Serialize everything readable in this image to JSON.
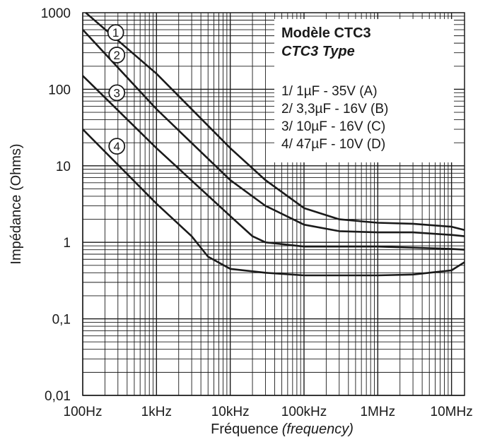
{
  "chart_data": {
    "type": "line",
    "x_scale": "log",
    "y_scale": "log",
    "xlim": [
      100,
      15000000
    ],
    "ylim": [
      0.01,
      1000
    ],
    "grid": true,
    "xlabel_main": "Fréquence",
    "xlabel_italic": "(frequency)",
    "ylabel": "Impédance (Ohms)",
    "x_ticks": [
      {
        "value": 100,
        "label": "100Hz"
      },
      {
        "value": 1000,
        "label": "1kHz"
      },
      {
        "value": 10000,
        "label": "10kHz"
      },
      {
        "value": 100000,
        "label": "100kHz"
      },
      {
        "value": 1000000,
        "label": "1MHz"
      },
      {
        "value": 10000000,
        "label": "10MHz"
      }
    ],
    "y_ticks": [
      {
        "value": 0.01,
        "label": "0,01"
      },
      {
        "value": 0.1,
        "label": "0,1"
      },
      {
        "value": 1,
        "label": "1"
      },
      {
        "value": 10,
        "label": "10"
      },
      {
        "value": 100,
        "label": "100"
      },
      {
        "value": 1000,
        "label": "1000"
      }
    ],
    "legend": {
      "title": "Modèle CTC3",
      "subtitle": "CTC3 Type",
      "placement": "top-right",
      "items": [
        "1/ 1µF - 35V (A)",
        "2/ 3,3µF - 16V (B)",
        "3/ 10µF - 16V (C)",
        "4/ 47µF - 10V (D)"
      ]
    },
    "series": [
      {
        "marker": "1",
        "marker_at": {
          "x": 280,
          "y": 550
        },
        "points": [
          [
            110,
            1000
          ],
          [
            1000,
            160
          ],
          [
            10000,
            17
          ],
          [
            30000,
            6.5
          ],
          [
            100000,
            2.8
          ],
          [
            300000,
            2.0
          ],
          [
            1000000,
            1.8
          ],
          [
            3000000,
            1.75
          ],
          [
            10000000,
            1.6
          ],
          [
            15000000,
            1.45
          ]
        ]
      },
      {
        "marker": "2",
        "marker_at": {
          "x": 290,
          "y": 280
        },
        "points": [
          [
            100,
            600
          ],
          [
            1000,
            55
          ],
          [
            10000,
            6.5
          ],
          [
            30000,
            3.0
          ],
          [
            100000,
            1.7
          ],
          [
            300000,
            1.4
          ],
          [
            1000000,
            1.35
          ],
          [
            3000000,
            1.35
          ],
          [
            10000000,
            1.25
          ],
          [
            15000000,
            1.2
          ]
        ]
      },
      {
        "marker": "3",
        "marker_at": {
          "x": 290,
          "y": 90
        },
        "points": [
          [
            100,
            150
          ],
          [
            1000,
            17
          ],
          [
            10000,
            2.2
          ],
          [
            20000,
            1.2
          ],
          [
            30000,
            1.0
          ],
          [
            100000,
            0.88
          ],
          [
            1000000,
            0.88
          ],
          [
            10000000,
            0.82
          ],
          [
            15000000,
            0.8
          ]
        ]
      },
      {
        "marker": "4",
        "marker_at": {
          "x": 290,
          "y": 18
        },
        "points": [
          [
            100,
            30
          ],
          [
            1000,
            3.2
          ],
          [
            3000,
            1.2
          ],
          [
            5000,
            0.65
          ],
          [
            10000,
            0.45
          ],
          [
            30000,
            0.4
          ],
          [
            100000,
            0.37
          ],
          [
            1000000,
            0.37
          ],
          [
            3000000,
            0.38
          ],
          [
            10000000,
            0.43
          ],
          [
            15000000,
            0.55
          ]
        ]
      }
    ]
  },
  "colors": {
    "curve": "#1a1a1a",
    "grid": "#1a1a1a",
    "background": "#ffffff"
  }
}
